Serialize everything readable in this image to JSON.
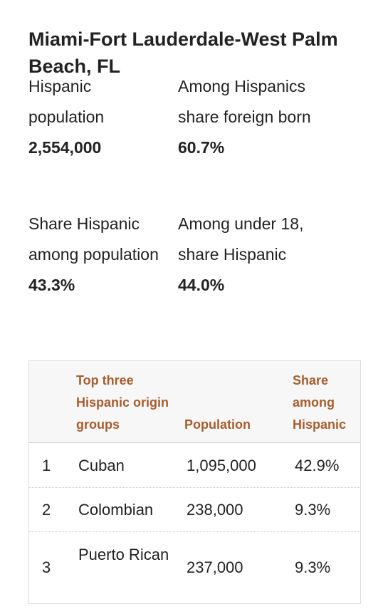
{
  "title": "Miami-Fort Lauderdale-West Palm Beach, FL",
  "stats": {
    "hispanic_population": {
      "label": "Hispanic population",
      "value": "2,554,000"
    },
    "foreign_born": {
      "label": "Among Hispanics share foreign born",
      "value": "60.7%"
    },
    "share_hispanic": {
      "label": "Share Hispanic among population",
      "value": "43.3%"
    },
    "under18": {
      "label": "Among under 18, share Hispanic",
      "value": "44.0%"
    }
  },
  "table": {
    "headers": {
      "origin": "Top three Hispanic origin groups",
      "population": "Population",
      "share": "Share among Hispanic"
    },
    "rows": [
      {
        "rank": "1",
        "origin": "Cuban",
        "population": "1,095,000",
        "share": "42.9%"
      },
      {
        "rank": "2",
        "origin": "Colombian",
        "population": "238,000",
        "share": "9.3%"
      },
      {
        "rank": "3",
        "origin": "Puerto Rican",
        "population": "237,000",
        "share": "9.3%"
      }
    ]
  },
  "colors": {
    "header_text": "#a65d2e",
    "body_text": "#222222",
    "header_bg": "#f7f7f7"
  }
}
